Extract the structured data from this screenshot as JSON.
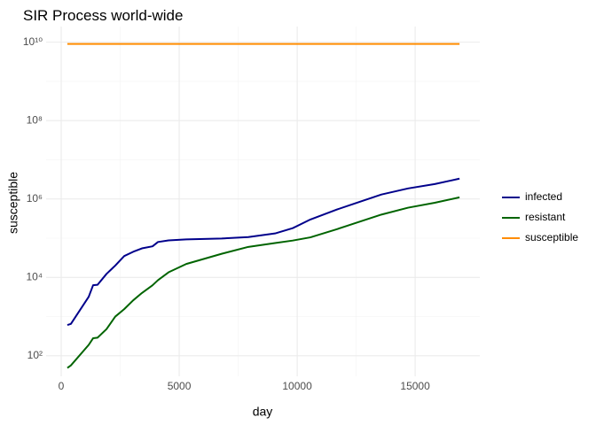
{
  "chart_data": {
    "type": "line",
    "title": "SIR Process world-wide",
    "x_label": "day",
    "y_label": "susceptible",
    "x": [
      260,
      410,
      1165,
      1350,
      1540,
      1920,
      2290,
      2670,
      3050,
      3420,
      3870,
      4100,
      4550,
      5300,
      6800,
      7930,
      9060,
      9810,
      10560,
      11690,
      12440,
      13570,
      14700,
      15830,
      16880
    ],
    "series": [
      {
        "name": "infected",
        "color": "#00008b",
        "values": [
          610,
          650,
          3200,
          6300,
          6500,
          12300,
          20000,
          35000,
          45000,
          55000,
          62000,
          80000,
          88000,
          93000,
          98000,
          107000,
          132000,
          180000,
          300000,
          540000,
          770000,
          1300000,
          1860000,
          2400000,
          3300000
        ]
      },
      {
        "name": "resistant",
        "color": "#006400",
        "values": [
          49,
          57,
          190,
          280,
          290,
          480,
          1000,
          1550,
          2600,
          4000,
          6300,
          8500,
          13500,
          22000,
          40000,
          60000,
          75000,
          87000,
          105000,
          170000,
          240000,
          400000,
          600000,
          800000,
          1100000
        ]
      },
      {
        "name": "susceptible",
        "color": "#ff8c00",
        "values": [
          9000000000,
          9000000000,
          9000000000,
          9000000000,
          9000000000,
          9000000000,
          9000000000,
          9000000000,
          9000000000,
          9000000000,
          9000000000,
          9000000000,
          9000000000,
          9000000000,
          9000000000,
          9000000000,
          9000000000,
          9000000000,
          9000000000,
          9000000000,
          9000000000,
          9000000000,
          9000000000,
          9000000000,
          9000000000
        ]
      }
    ],
    "xlim": [
      -640,
      17740
    ],
    "xticks": [
      0,
      5000,
      10000,
      15000
    ],
    "x_minor_ticks": [
      2500,
      7500,
      12500
    ],
    "ylim": [
      30,
      25000000000
    ],
    "y_log": true,
    "yticks": [
      {
        "value": 100,
        "label": "10²"
      },
      {
        "value": 10000,
        "label": "10⁴"
      },
      {
        "value": 1000000,
        "label": "10⁶"
      },
      {
        "value": 100000000,
        "label": "10⁸"
      },
      {
        "value": 10000000000,
        "label": "10¹⁰"
      }
    ],
    "y_minor_ticks": [
      1000,
      100000,
      10000000,
      1000000000
    ],
    "grid": true,
    "legend": "right"
  }
}
